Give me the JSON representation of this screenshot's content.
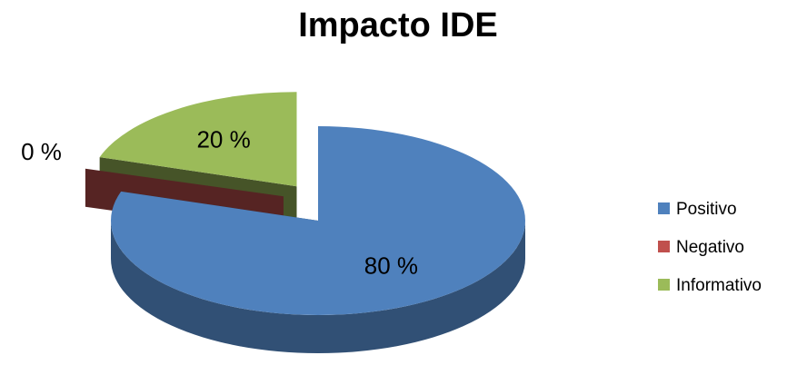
{
  "chart_data": {
    "type": "pie",
    "title": "Impacto IDE",
    "categories": [
      "Positivo",
      "Negativo",
      "Informativo"
    ],
    "values": [
      80,
      0,
      20
    ],
    "data_labels": [
      "80 %",
      "0 %",
      "20 %"
    ],
    "colors": [
      "#4F81BD",
      "#C0504D",
      "#9BBB59"
    ],
    "legend_position": "right",
    "style": "3d-exploded"
  }
}
